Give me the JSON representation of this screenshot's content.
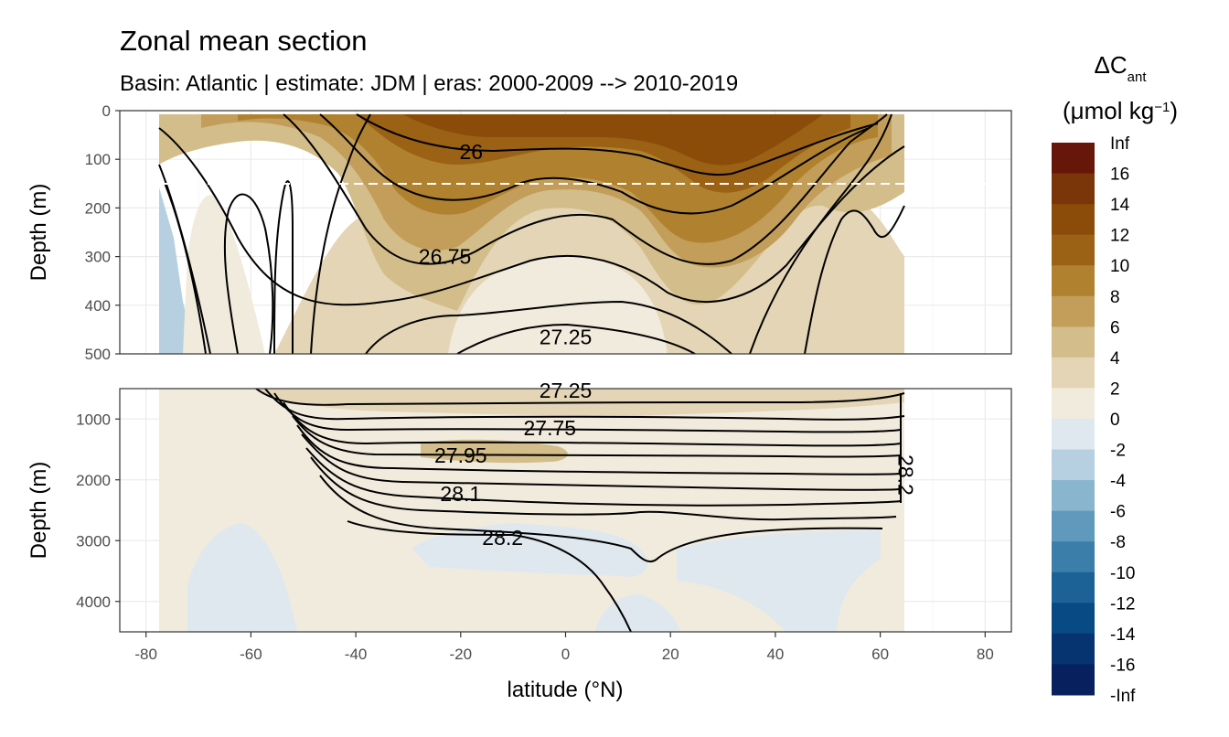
{
  "chart_data": {
    "type": "heatmap",
    "title": "Zonal mean section",
    "subtitle": "Basin: Atlantic | estimate: JDM  | eras: 2000-2009 --> 2010-2019",
    "xlabel": "latitude (°N)",
    "ylabel": "Depth (m)",
    "x_ticks": [
      "-80",
      "-60",
      "-40",
      "-20",
      "0",
      "20",
      "40",
      "60",
      "80"
    ],
    "xlim": [
      -85,
      85
    ],
    "panels": [
      {
        "name": "upper",
        "ylim": [
          0,
          500
        ],
        "y_ticks": [
          "0",
          "100",
          "200",
          "300",
          "400",
          "500"
        ],
        "y_tick_values": [
          0,
          100,
          200,
          300,
          400,
          500
        ],
        "dashed_line_depth": 150
      },
      {
        "name": "lower",
        "ylim": [
          500,
          4500
        ],
        "y_ticks": [
          "1000",
          "2000",
          "3000",
          "4000"
        ],
        "y_tick_values": [
          1000,
          2000,
          3000,
          4000
        ]
      }
    ],
    "legend": {
      "title_main": "ΔC",
      "title_sub": "ant",
      "unit": "(μmol kg",
      "unit_sup": "−1",
      "unit_end": ")",
      "placement": "right",
      "labels": [
        "Inf",
        "16",
        "14",
        "12",
        "10",
        "8",
        "6",
        "4",
        "2",
        "0",
        "-2",
        "-4",
        "-6",
        "-8",
        "-10",
        "-12",
        "-14",
        "-16",
        "-Inf"
      ],
      "colors": [
        "#67170a",
        "#7a3508",
        "#8a4c08",
        "#9b6114",
        "#b0822f",
        "#c29e5a",
        "#d3bd8a",
        "#e4d5b6",
        "#f1ebde",
        "#dfe8ee",
        "#b6d0e1",
        "#8ab5ce",
        "#5f99bb",
        "#3b7ea9",
        "#1c6296",
        "#084a84",
        "#063470",
        "#08215e"
      ]
    },
    "density_contours": [
      {
        "label": "26",
        "lat": -18,
        "depth": 85
      },
      {
        "label": "26.75",
        "lat": -23,
        "depth": 300
      },
      {
        "label": "27.25",
        "lat": 0,
        "depth": 465
      },
      {
        "label": "27.25",
        "lat": 0,
        "depth": 530
      },
      {
        "label": "27.75",
        "lat": -3,
        "depth": 1150
      },
      {
        "label": "27.95",
        "lat": -20,
        "depth": 1600
      },
      {
        "label": "28.1",
        "lat": -20,
        "depth": 2230
      },
      {
        "label": "28.2",
        "lat": -12,
        "depth": 2950
      },
      {
        "label": "28.2",
        "lat": 63.5,
        "depth": 1800
      }
    ]
  }
}
